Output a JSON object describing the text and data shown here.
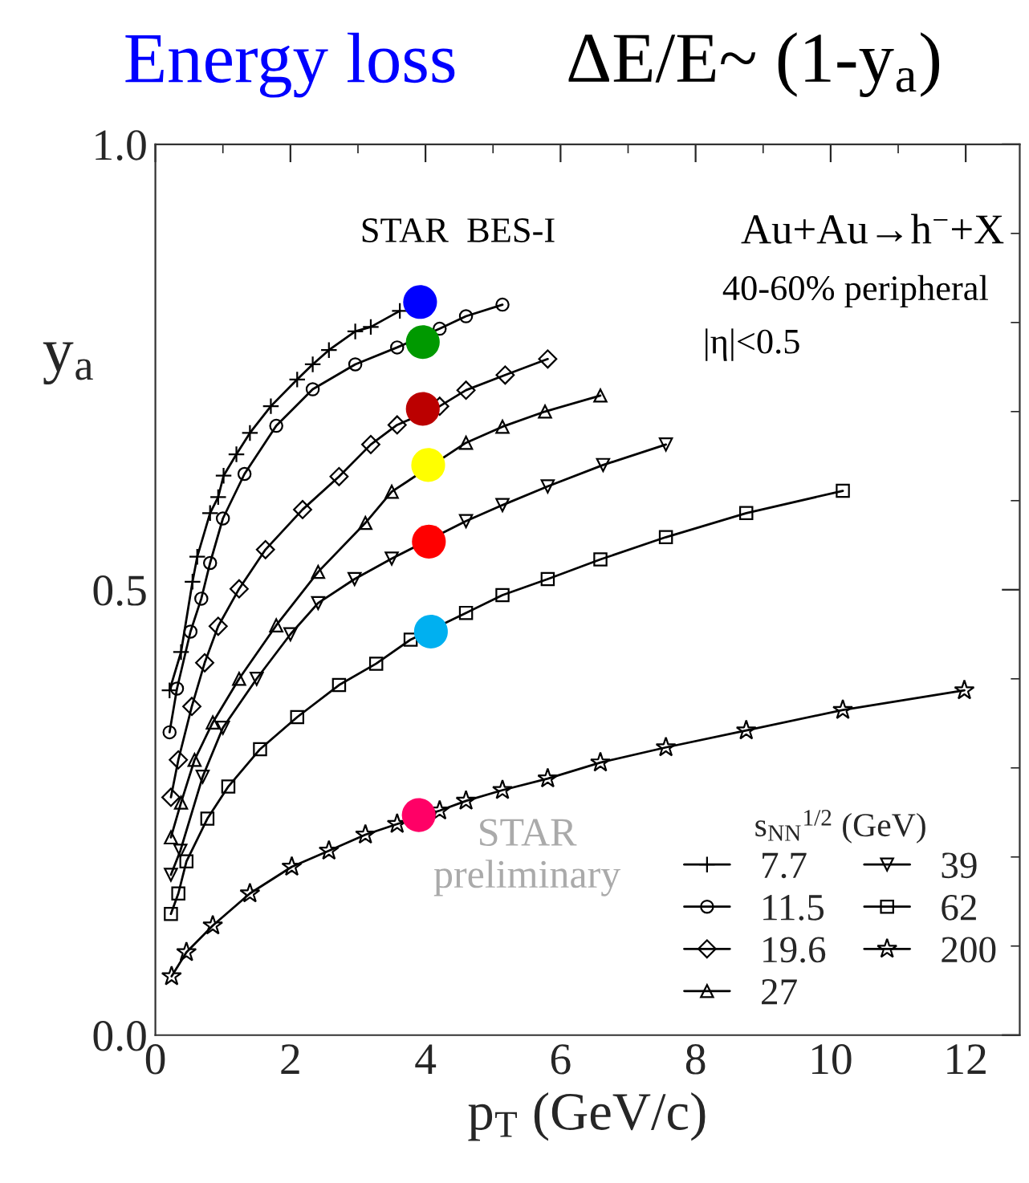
{
  "chart_data": {
    "type": "line",
    "title": "Energy loss",
    "subtitle": "ΔE/E~ (1-y$_{a}$)",
    "xlabel": "p$_{T}$ (GeV/c)",
    "ylabel": "y$_{a}$",
    "legend_title": "s$_{NN}$$^{1/2}$ (GeV)",
    "xlim": [
      0,
      12.8
    ],
    "ylim": [
      0,
      1.0
    ],
    "xticks": [
      0,
      2,
      4,
      6,
      8,
      10,
      12
    ],
    "yticks": [
      {
        "value": 0,
        "label": "0.0"
      },
      {
        "value": 0.5,
        "label": "0.5"
      },
      {
        "value": 1.0,
        "label": "1.0"
      }
    ],
    "grid": false,
    "legend": "bottom right",
    "line_style": "solid",
    "annotations": [
      "STAR  BES-I",
      "Au+Au→h$^{−}$+X",
      "40-60% peripheral",
      "|η|<0.5",
      "STAR\npreliminary"
    ],
    "series": [
      {
        "name": "7.7",
        "color": "#000000",
        "marker": "cross",
        "x": [
          0.21,
          0.38,
          0.55,
          0.62,
          0.81,
          0.93,
          1.01,
          1.2,
          1.4,
          1.71,
          2.1,
          2.33,
          2.57,
          2.96,
          3.19,
          3.62
        ],
        "values": [
          0.387,
          0.43,
          0.509,
          0.537,
          0.586,
          0.604,
          0.628,
          0.652,
          0.676,
          0.706,
          0.736,
          0.753,
          0.769,
          0.79,
          0.795,
          0.813
        ]
      },
      {
        "name": "11.5",
        "color": "#000000",
        "marker": "circle",
        "x": [
          0.21,
          0.32,
          0.52,
          0.68,
          0.81,
          1.0,
          1.32,
          1.79,
          2.33,
          2.96,
          3.58,
          4.21,
          4.6,
          5.14
        ],
        "values": [
          0.34,
          0.389,
          0.453,
          0.49,
          0.53,
          0.58,
          0.63,
          0.684,
          0.725,
          0.753,
          0.772,
          0.793,
          0.807,
          0.82
        ]
      },
      {
        "name": "19.6",
        "color": "#000000",
        "marker": "diamond",
        "x": [
          0.23,
          0.34,
          0.54,
          0.73,
          0.93,
          1.24,
          1.63,
          2.18,
          2.72,
          3.19,
          3.58,
          4.21,
          4.6,
          5.18,
          5.81
        ],
        "values": [
          0.267,
          0.309,
          0.369,
          0.418,
          0.459,
          0.501,
          0.545,
          0.59,
          0.627,
          0.663,
          0.685,
          0.706,
          0.724,
          0.741,
          0.759
        ]
      },
      {
        "name": "27",
        "color": "#000000",
        "marker": "triangle",
        "x": [
          0.23,
          0.38,
          0.58,
          0.85,
          1.24,
          1.79,
          2.41,
          3.11,
          3.5,
          4.6,
          5.14,
          5.77,
          6.59
        ],
        "values": [
          0.222,
          0.261,
          0.309,
          0.351,
          0.4,
          0.46,
          0.52,
          0.575,
          0.61,
          0.665,
          0.683,
          0.7,
          0.718
        ]
      },
      {
        "name": "39",
        "color": "#000000",
        "marker": "triangle_down",
        "x": [
          0.23,
          0.37,
          0.7,
          1.0,
          1.5,
          2.0,
          2.41,
          2.95,
          3.5,
          4.6,
          5.14,
          5.81,
          6.63,
          7.56
        ],
        "values": [
          0.18,
          0.207,
          0.29,
          0.345,
          0.4,
          0.45,
          0.485,
          0.512,
          0.535,
          0.577,
          0.595,
          0.616,
          0.64,
          0.663
        ]
      },
      {
        "name": "62",
        "color": "#000000",
        "marker": "square",
        "x": [
          0.23,
          0.34,
          0.46,
          0.77,
          1.08,
          1.55,
          2.1,
          2.72,
          3.27,
          3.78,
          4.6,
          5.14,
          5.81,
          6.59,
          7.56,
          8.75,
          10.18
        ],
        "values": [
          0.136,
          0.159,
          0.195,
          0.243,
          0.279,
          0.321,
          0.357,
          0.393,
          0.417,
          0.444,
          0.474,
          0.494,
          0.512,
          0.534,
          0.559,
          0.586,
          0.611
        ]
      },
      {
        "name": "200",
        "color": "#000000",
        "marker": "star",
        "x": [
          0.24,
          0.46,
          0.85,
          1.4,
          2.02,
          2.57,
          3.11,
          3.58,
          4.21,
          4.6,
          5.14,
          5.81,
          6.59,
          7.56,
          8.75,
          10.18,
          11.98
        ],
        "values": [
          0.066,
          0.093,
          0.123,
          0.159,
          0.189,
          0.207,
          0.225,
          0.237,
          0.252,
          0.263,
          0.275,
          0.288,
          0.306,
          0.323,
          0.342,
          0.365,
          0.387
        ]
      },
      {
        "type": "scatter",
        "marker": "circle",
        "colors": [
          "#0000ff",
          "#009900",
          "#bb0000",
          "#ffff00",
          "#ff0000",
          "#00b0f0",
          "#ff0066"
        ],
        "x": [
          3.92,
          3.96,
          3.96,
          4.04,
          4.05,
          4.08,
          3.9
        ],
        "values": [
          0.823,
          0.778,
          0.703,
          0.64,
          0.554,
          0.453,
          0.247
        ]
      }
    ]
  }
}
